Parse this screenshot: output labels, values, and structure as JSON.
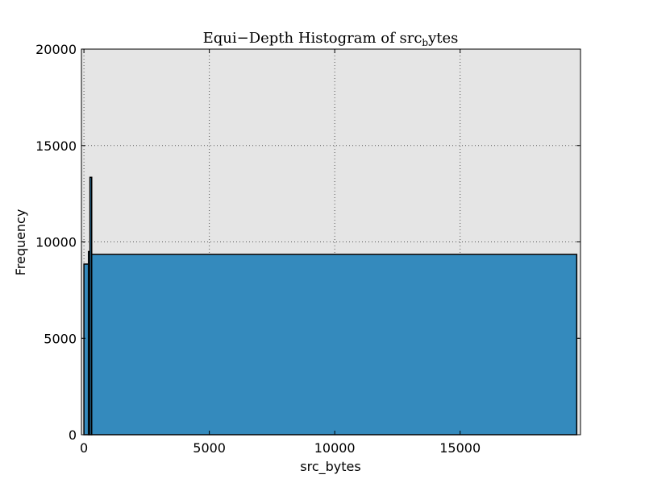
{
  "chart_data": {
    "type": "bar",
    "title": "Equi−Depth Histogram of src",
    "title_subscript": "b",
    "title_suffix": "ytes",
    "xlabel": "src_bytes",
    "ylabel": "Frequency",
    "xlim": [
      -100,
      19800
    ],
    "ylim": [
      0,
      20000
    ],
    "xticks": [
      0,
      5000,
      10000,
      15000
    ],
    "yticks": [
      0,
      5000,
      10000,
      15000,
      20000
    ],
    "grid": true,
    "colors": {
      "bar": "#348abd",
      "plot_bg": "#e5e5e5",
      "edge": "#000000",
      "grid": "#555555"
    },
    "bins": [
      {
        "left": 0,
        "right": 180,
        "value": 8850
      },
      {
        "left": 180,
        "right": 240,
        "value": 9500
      },
      {
        "left": 240,
        "right": 310,
        "value": 13350
      },
      {
        "left": 310,
        "right": 19650,
        "value": 9350
      }
    ]
  }
}
